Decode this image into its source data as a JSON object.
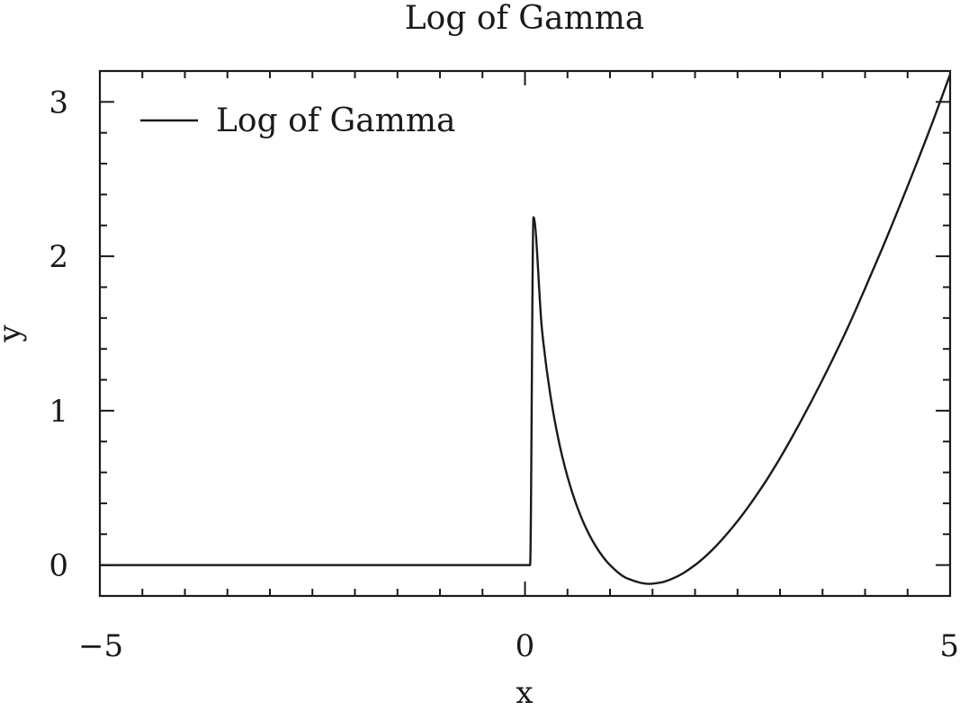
{
  "chart_data": {
    "type": "line",
    "title": "Log of Gamma",
    "xlabel": "x",
    "ylabel": "y",
    "xlim": [
      -5,
      5
    ],
    "ylim": [
      -0.2,
      3.2
    ],
    "xticks": [
      -5,
      0,
      5
    ],
    "xtick_labels": [
      "−5",
      "0",
      "5"
    ],
    "xminor_step": 0.5,
    "yticks": [
      0,
      1,
      2,
      3
    ],
    "ytick_labels": [
      "0",
      "1",
      "2",
      "3"
    ],
    "yminor_step": 0.2,
    "grid": false,
    "legend": {
      "position": "top-left",
      "entries": [
        "Log of Gamma"
      ]
    },
    "series": [
      {
        "name": "Log of Gamma",
        "color": "#1a1a1a",
        "x": [
          -5,
          -4,
          -3,
          -2,
          -1,
          0,
          0.06,
          0.1,
          0.2,
          0.3,
          0.4,
          0.5,
          0.6,
          0.7,
          0.8,
          0.9,
          1.0,
          1.2,
          1.4616,
          1.6,
          1.8,
          2.0,
          2.2,
          2.5,
          2.8,
          3.0,
          3.2,
          3.5,
          3.8,
          4.0,
          4.2,
          4.5,
          4.8,
          5.0
        ],
        "y": [
          0,
          0,
          0,
          0,
          0,
          0,
          0,
          2.2527,
          1.5241,
          1.0958,
          0.7966,
          0.5724,
          0.3982,
          0.2609,
          0.1521,
          0.0663,
          0,
          -0.0854,
          -0.1215,
          -0.1126,
          -0.0711,
          0,
          0.0969,
          0.2847,
          0.5156,
          0.6931,
          0.8872,
          1.201,
          1.5425,
          1.7918,
          2.0486,
          2.4537,
          2.878,
          3.1781
        ]
      }
    ]
  }
}
